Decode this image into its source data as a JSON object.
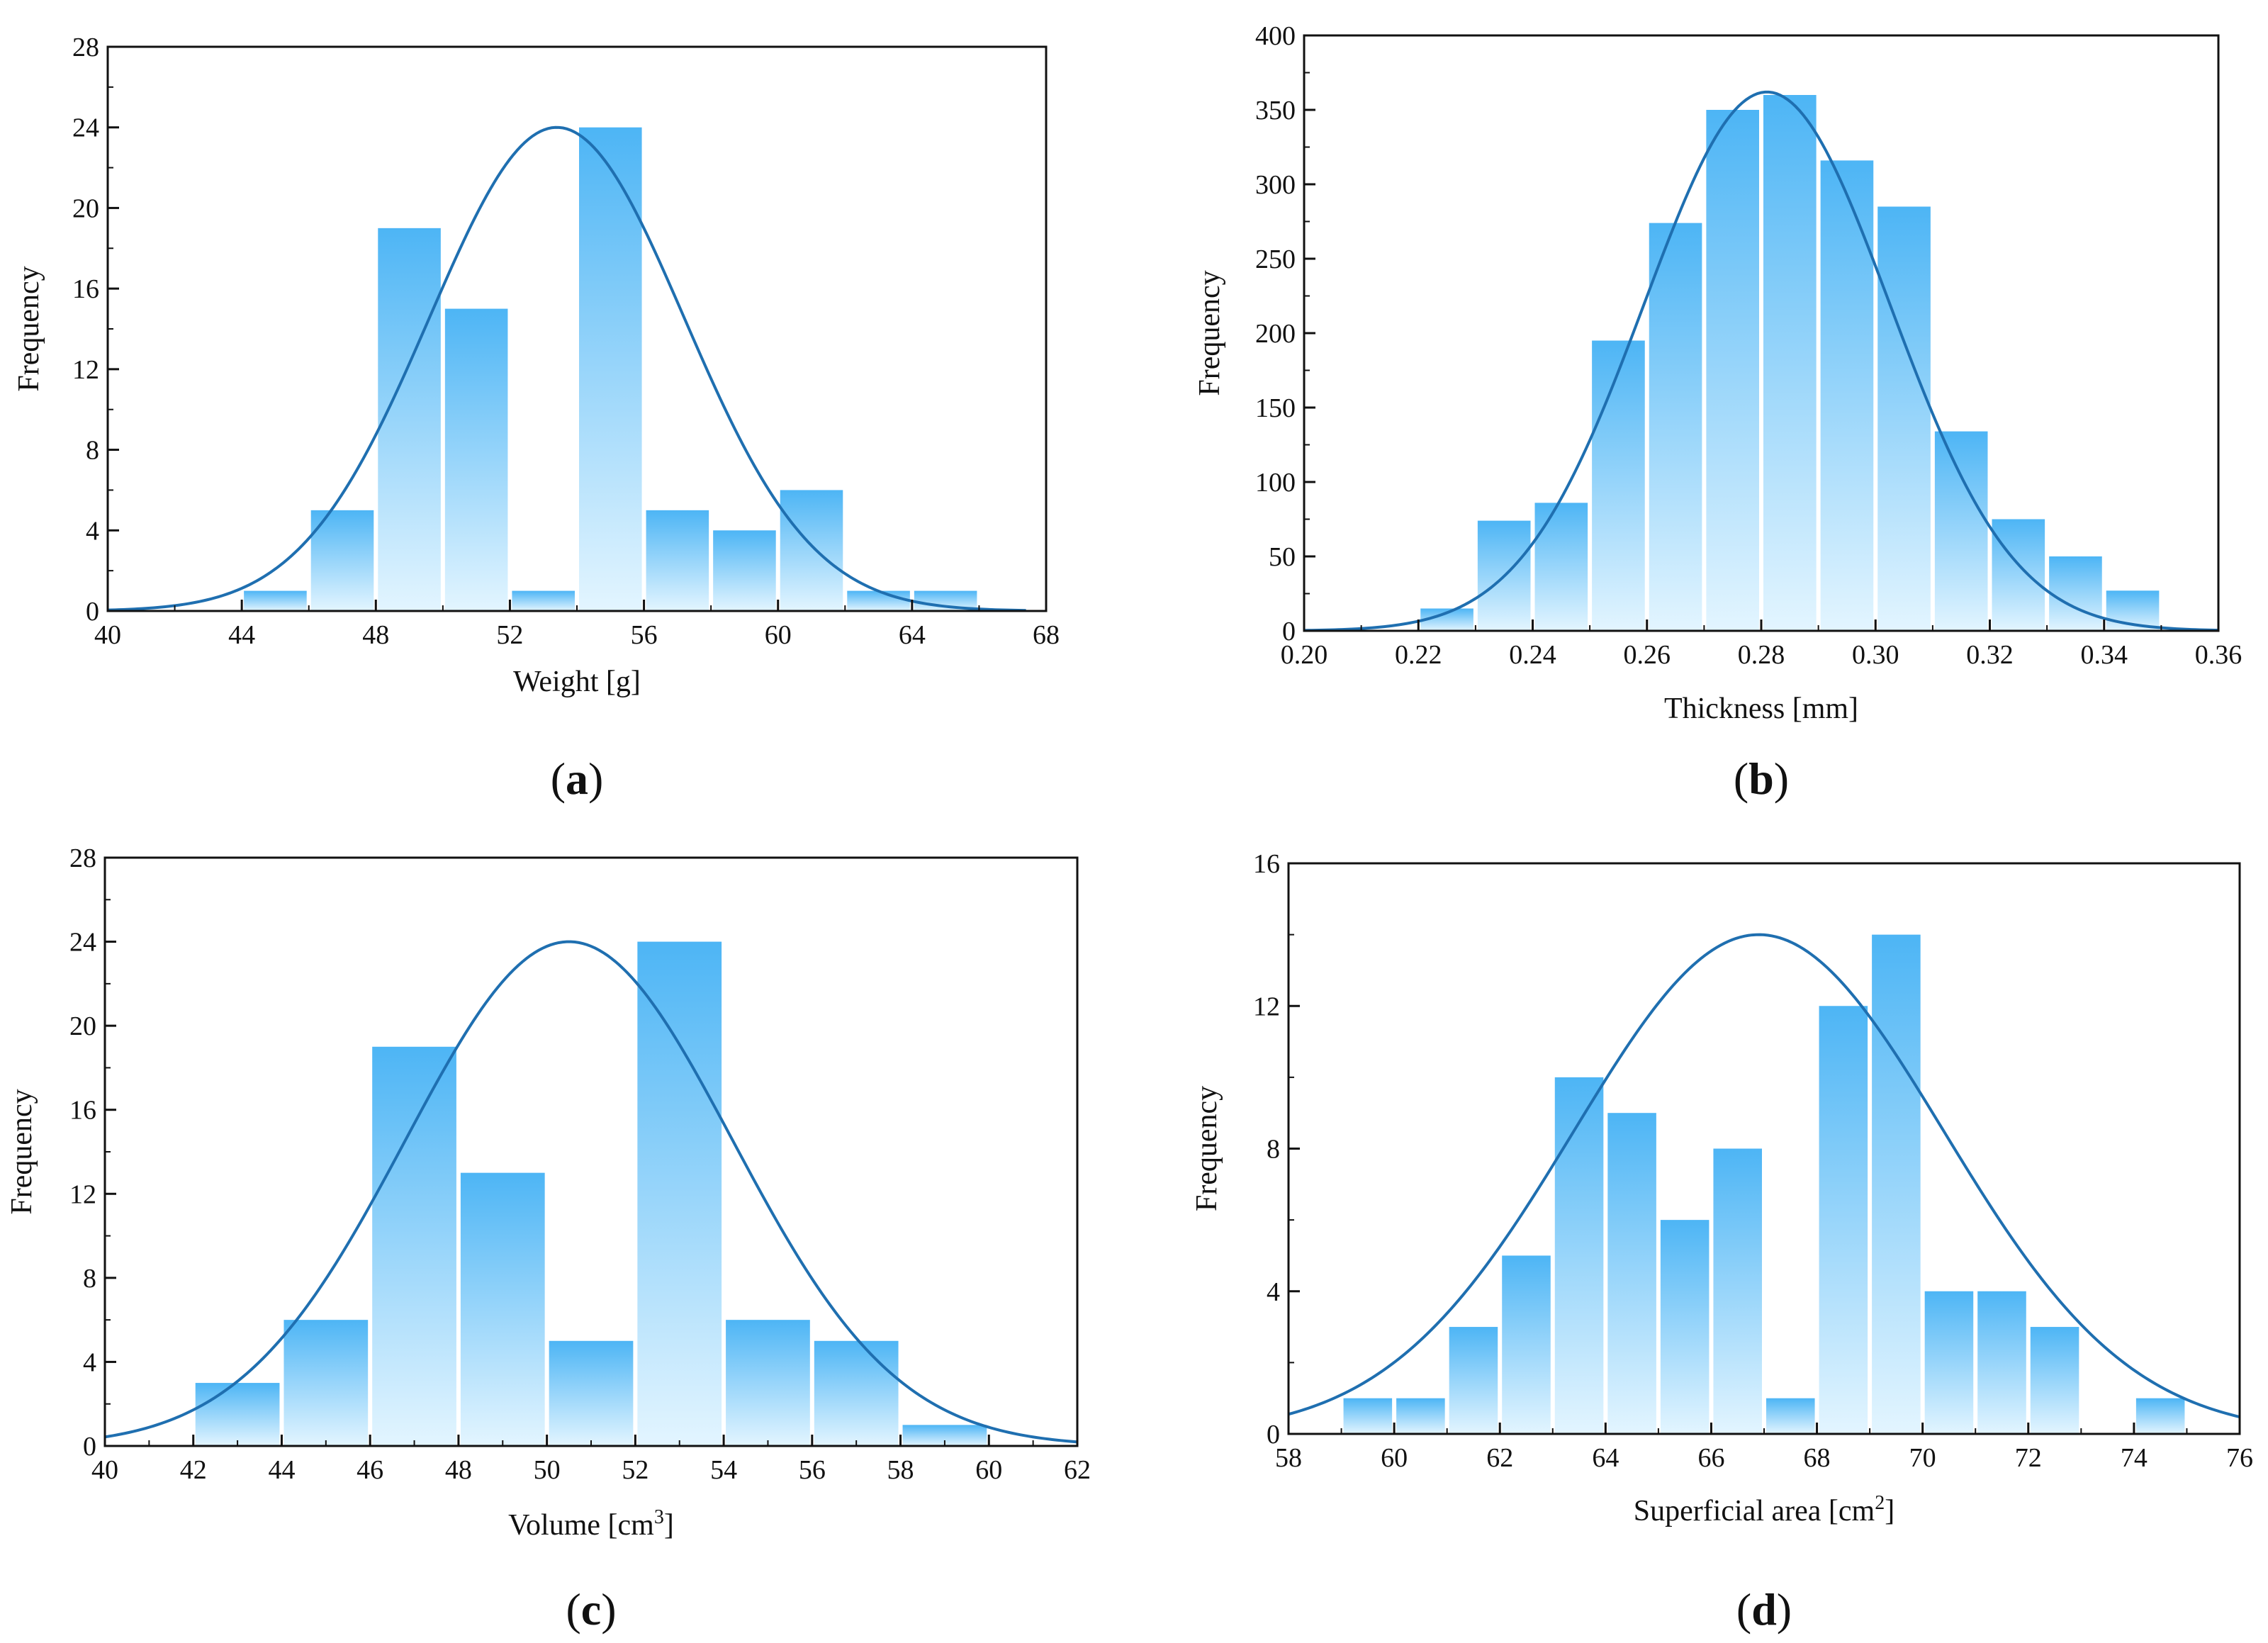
{
  "figure": {
    "charts": [
      {
        "panel_letter": "a",
        "panel_open": "(",
        "panel_close": ")"
      },
      {
        "panel_letter": "b",
        "panel_open": "(",
        "panel_close": ")"
      },
      {
        "panel_letter": "c",
        "panel_open": "(",
        "panel_close": ")"
      },
      {
        "panel_letter": "d",
        "panel_open": "(",
        "panel_close": ")"
      }
    ]
  },
  "colors": {
    "bar_top": "#4db5f5",
    "bar_bottom": "#e3f5ff",
    "curve": "#1f6fb0",
    "axis": "#111111"
  },
  "chart_data": [
    {
      "type": "bar",
      "id": "a",
      "title": "",
      "xlabel": "Weight [g]",
      "ylabel": "Frequency",
      "xlim": [
        40,
        68
      ],
      "ylim": [
        0,
        28
      ],
      "xticks": [
        40,
        44,
        48,
        52,
        56,
        60,
        64,
        68
      ],
      "yticks": [
        0,
        4,
        8,
        12,
        16,
        20,
        24,
        28
      ],
      "xtick_labels": [
        "40",
        "44",
        "48",
        "52",
        "56",
        "60",
        "64",
        "68"
      ],
      "ytick_labels": [
        "0",
        "4",
        "8",
        "12",
        "16",
        "20",
        "24",
        "28"
      ],
      "bins": [
        {
          "x0": 44,
          "x1": 46,
          "value": 1
        },
        {
          "x0": 46,
          "x1": 48,
          "value": 5
        },
        {
          "x0": 48,
          "x1": 50,
          "value": 19
        },
        {
          "x0": 50,
          "x1": 52,
          "value": 15
        },
        {
          "x0": 52,
          "x1": 54,
          "value": 1
        },
        {
          "x0": 54,
          "x1": 56,
          "value": 24
        },
        {
          "x0": 56,
          "x1": 58,
          "value": 5
        },
        {
          "x0": 58,
          "x1": 60,
          "value": 4
        },
        {
          "x0": 60,
          "x1": 62,
          "value": 6
        },
        {
          "x0": 62,
          "x1": 64,
          "value": 1
        },
        {
          "x0": 64,
          "x1": 66,
          "value": 1
        }
      ],
      "fit": {
        "mean": 53.4,
        "sd": 3.8,
        "peak": 24,
        "x_from": 40,
        "x_to": 67.4
      }
    },
    {
      "type": "bar",
      "id": "b",
      "title": "",
      "xlabel": "Thickness [mm]",
      "ylabel": "Frequency",
      "xlim": [
        0.2,
        0.36
      ],
      "ylim": [
        0,
        400
      ],
      "xticks": [
        0.2,
        0.22,
        0.24,
        0.26,
        0.28,
        0.3,
        0.32,
        0.34,
        0.36
      ],
      "yticks": [
        0,
        50,
        100,
        150,
        200,
        250,
        300,
        350,
        400
      ],
      "xtick_labels": [
        "0.20",
        "0.22",
        "0.24",
        "0.26",
        "0.28",
        "0.30",
        "0.32",
        "0.34",
        "0.36"
      ],
      "ytick_labels": [
        "0",
        "50",
        "100",
        "150",
        "200",
        "250",
        "300",
        "350",
        "400"
      ],
      "bins": [
        {
          "x0": 0.22,
          "x1": 0.23,
          "value": 15
        },
        {
          "x0": 0.23,
          "x1": 0.24,
          "value": 74
        },
        {
          "x0": 0.24,
          "x1": 0.25,
          "value": 86
        },
        {
          "x0": 0.25,
          "x1": 0.26,
          "value": 195
        },
        {
          "x0": 0.26,
          "x1": 0.27,
          "value": 274
        },
        {
          "x0": 0.27,
          "x1": 0.28,
          "value": 350
        },
        {
          "x0": 0.28,
          "x1": 0.29,
          "value": 360
        },
        {
          "x0": 0.29,
          "x1": 0.3,
          "value": 316
        },
        {
          "x0": 0.3,
          "x1": 0.31,
          "value": 285
        },
        {
          "x0": 0.31,
          "x1": 0.32,
          "value": 134
        },
        {
          "x0": 0.32,
          "x1": 0.33,
          "value": 75
        },
        {
          "x0": 0.33,
          "x1": 0.34,
          "value": 50
        },
        {
          "x0": 0.34,
          "x1": 0.35,
          "value": 27
        }
      ],
      "fit": {
        "mean": 0.281,
        "sd": 0.0215,
        "peak": 362,
        "x_from": 0.2,
        "x_to": 0.36
      }
    },
    {
      "type": "bar",
      "id": "c",
      "title": "",
      "xlabel": "Volume [cm",
      "xlabel_sup": "3",
      "xlabel_end": "]",
      "ylabel": "Frequency",
      "xlim": [
        40,
        62
      ],
      "ylim": [
        0,
        28
      ],
      "xticks": [
        40,
        42,
        44,
        46,
        48,
        50,
        52,
        54,
        56,
        58,
        60,
        62
      ],
      "yticks": [
        0,
        4,
        8,
        12,
        16,
        20,
        24,
        28
      ],
      "xtick_labels": [
        "40",
        "42",
        "44",
        "46",
        "48",
        "50",
        "52",
        "54",
        "56",
        "58",
        "60",
        "62"
      ],
      "ytick_labels": [
        "0",
        "4",
        "8",
        "12",
        "16",
        "20",
        "24",
        "28"
      ],
      "bins": [
        {
          "x0": 42,
          "x1": 44,
          "value": 3
        },
        {
          "x0": 44,
          "x1": 46,
          "value": 6
        },
        {
          "x0": 46,
          "x1": 48,
          "value": 19
        },
        {
          "x0": 48,
          "x1": 50,
          "value": 13
        },
        {
          "x0": 50,
          "x1": 52,
          "value": 5
        },
        {
          "x0": 52,
          "x1": 54,
          "value": 24
        },
        {
          "x0": 54,
          "x1": 56,
          "value": 6
        },
        {
          "x0": 56,
          "x1": 58,
          "value": 5
        },
        {
          "x0": 58,
          "x1": 60,
          "value": 1
        }
      ],
      "fit": {
        "mean": 50.5,
        "sd": 3.7,
        "peak": 24,
        "x_from": 40,
        "x_to": 62
      }
    },
    {
      "type": "bar",
      "id": "d",
      "title": "",
      "xlabel": "Superficial area [cm",
      "xlabel_sup": "2",
      "xlabel_end": "]",
      "ylabel": "Frequency",
      "xlim": [
        58,
        76
      ],
      "ylim": [
        0,
        16
      ],
      "xticks": [
        58,
        60,
        62,
        64,
        66,
        68,
        70,
        72,
        74,
        76
      ],
      "yticks": [
        0,
        4,
        8,
        12,
        16
      ],
      "xtick_labels": [
        "58",
        "60",
        "62",
        "64",
        "66",
        "68",
        "70",
        "72",
        "74",
        "76"
      ],
      "ytick_labels": [
        "0",
        "4",
        "8",
        "12",
        "16"
      ],
      "bins": [
        {
          "x0": 59,
          "x1": 60,
          "value": 1
        },
        {
          "x0": 60,
          "x1": 61,
          "value": 1
        },
        {
          "x0": 61,
          "x1": 62,
          "value": 3
        },
        {
          "x0": 62,
          "x1": 63,
          "value": 5
        },
        {
          "x0": 63,
          "x1": 64,
          "value": 10
        },
        {
          "x0": 64,
          "x1": 65,
          "value": 9
        },
        {
          "x0": 65,
          "x1": 66,
          "value": 6
        },
        {
          "x0": 66,
          "x1": 67,
          "value": 8
        },
        {
          "x0": 67,
          "x1": 68,
          "value": 1
        },
        {
          "x0": 68,
          "x1": 69,
          "value": 12
        },
        {
          "x0": 69,
          "x1": 70,
          "value": 14
        },
        {
          "x0": 70,
          "x1": 71,
          "value": 4
        },
        {
          "x0": 71,
          "x1": 72,
          "value": 4
        },
        {
          "x0": 72,
          "x1": 73,
          "value": 3
        },
        {
          "x0": 74,
          "x1": 75,
          "value": 1
        }
      ],
      "fit": {
        "mean": 66.9,
        "sd": 3.5,
        "peak": 14,
        "x_from": 58,
        "x_to": 76
      }
    }
  ]
}
